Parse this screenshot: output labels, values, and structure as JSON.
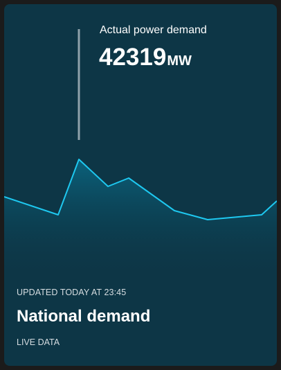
{
  "reading": {
    "label": "Actual power demand",
    "value": "42319",
    "unit": "MW"
  },
  "card": {
    "updated": "UPDATED TODAY AT 23:45",
    "title": "National demand",
    "live_label": "LIVE DATA"
  },
  "colors": {
    "card_background": "#0d3646",
    "line": "#1ec8f0",
    "marker": "#8fa2ab"
  }
}
